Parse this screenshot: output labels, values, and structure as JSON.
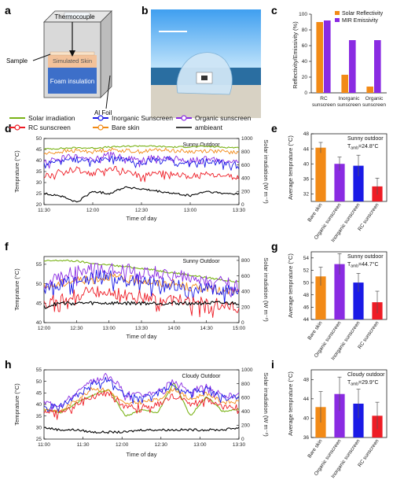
{
  "colors": {
    "solar": "#7ab317",
    "inorganic": "#1a1ae6",
    "organic": "#8a2be2",
    "rc": "#ee1c25",
    "bare": "#f28a16",
    "ambient": "#000000",
    "foam": "#3d6fc9",
    "skin": "#f3c29a",
    "alfoil": "#cfcfcf"
  },
  "panels": {
    "a": "a",
    "b": "b",
    "c": "c",
    "d": "d",
    "e": "e",
    "f": "f",
    "g": "g",
    "h": "h",
    "i": "i"
  },
  "schematic": {
    "thermocouple": "Thermocouple",
    "sample": "Sample",
    "skin": "Simulated Skin",
    "foam": "Foam insulation",
    "foil": "Al Foil"
  },
  "legend": {
    "solar": "Solar irradiation",
    "inorganic": "Inorganic Sunscreen",
    "organic": "Organic sunscreen",
    "rc": "RC sunscreen",
    "bare": "Bare skin",
    "ambient": "ambieant"
  },
  "chart_data": [
    {
      "id": "c",
      "type": "bar",
      "categories": [
        "RC sunscreen",
        "Inorganic sunscreen",
        "Organic sunscreen"
      ],
      "series": [
        {
          "name": "Solar Reflectivity",
          "values": [
            90,
            23,
            8
          ]
        },
        {
          "name": "MIR Emissivity",
          "values": [
            92,
            67,
            67
          ]
        }
      ],
      "ylabel": "Reflectivity/Emissivity (%)",
      "ylim": [
        0,
        100
      ],
      "yticks": [
        0,
        20,
        40,
        60,
        80,
        100
      ],
      "legend": "top-right"
    },
    {
      "id": "d",
      "type": "line",
      "annotation": "Sunny Outdoor",
      "xlabel": "Time of day",
      "ylabel": "Temprature (°C)",
      "y2label": "Solar irradiation (W m⁻²)",
      "xticks": [
        "11:30",
        "12:00",
        "12:30",
        "13:00",
        "13:30"
      ],
      "ylim": [
        20,
        50
      ],
      "yticks": [
        20,
        25,
        30,
        35,
        40,
        45,
        50
      ],
      "y2lim": [
        0,
        1000
      ],
      "y2ticks": [
        0,
        200,
        400,
        600,
        800,
        1000
      ],
      "series": [
        {
          "name": "Solar irradiation",
          "axis": "right",
          "values": [
            840,
            850,
            860,
            855,
            870,
            880,
            890,
            880,
            870,
            875,
            880,
            870,
            860
          ]
        },
        {
          "name": "Bare skin",
          "values": [
            43,
            44,
            44.5,
            44,
            45,
            44.5,
            44,
            45,
            44.5,
            44,
            44.5,
            44,
            43.5
          ]
        },
        {
          "name": "Organic sunscreen",
          "values": [
            39,
            41,
            42,
            40,
            43,
            41,
            40,
            42,
            41,
            40,
            41,
            40,
            39
          ]
        },
        {
          "name": "Inorganic Sunscreen",
          "values": [
            38,
            40,
            41,
            39,
            42,
            40,
            39,
            41,
            40,
            39,
            40,
            39,
            38
          ]
        },
        {
          "name": "RC sunscreen",
          "values": [
            33,
            35,
            36,
            34,
            37,
            35,
            33,
            35,
            34,
            33,
            34,
            33,
            32
          ]
        },
        {
          "name": "ambieant",
          "values": [
            25,
            24,
            21,
            26,
            25,
            28,
            27,
            26,
            25,
            24,
            26,
            25,
            25
          ]
        }
      ]
    },
    {
      "id": "e",
      "type": "bar",
      "annotation": "Sunny outdoor",
      "amb_main": "T",
      "amb_sub": "amb",
      "amb_val": "=24.8°C",
      "categories": [
        "Bare skin",
        "Organic sunscreen",
        "Inorganic sunscreen",
        "RC sunscreen"
      ],
      "values": [
        44.3,
        40.0,
        39.5,
        34.0
      ],
      "errors": [
        1.4,
        1.8,
        2.8,
        2.2
      ],
      "ylabel": "Average temprature (°C)",
      "ylim": [
        30,
        48
      ],
      "yticks": [
        32,
        36,
        40,
        44,
        48
      ]
    },
    {
      "id": "f",
      "type": "line",
      "annotation": "Sunny Outdoor",
      "xlabel": "Time of day",
      "ylabel": "Temprature (°C)",
      "y2label": "Solar irradiation (W m⁻²)",
      "xticks": [
        "12:00",
        "12:30",
        "13:00",
        "13:30",
        "14:00",
        "14:30",
        "15:00"
      ],
      "ylim": [
        40,
        57
      ],
      "yticks": [
        40,
        45,
        50,
        55
      ],
      "y2lim": [
        0,
        850
      ],
      "y2ticks": [
        0,
        200,
        400,
        600,
        800
      ],
      "series": [
        {
          "name": "Solar irradiation",
          "axis": "right",
          "values": [
            790,
            800,
            790,
            760,
            740,
            720,
            700,
            670,
            640,
            610,
            580,
            550,
            520
          ]
        },
        {
          "name": "Bare skin",
          "values": [
            49,
            50,
            51,
            51,
            52,
            51,
            51,
            50,
            50,
            49,
            49,
            48,
            48
          ]
        },
        {
          "name": "Organic sunscreen",
          "values": [
            50,
            52,
            53,
            54,
            54,
            54,
            53,
            53,
            52,
            52,
            51,
            51,
            50
          ]
        },
        {
          "name": "Inorganic Sunscreen",
          "values": [
            49,
            50,
            51,
            52,
            52,
            51,
            51,
            50,
            50,
            49,
            49,
            48,
            48
          ]
        },
        {
          "name": "RC sunscreen",
          "values": [
            45,
            46,
            47,
            48,
            48,
            47,
            47,
            46,
            46,
            45,
            45,
            45,
            44
          ]
        },
        {
          "name": "ambieant",
          "values": [
            44,
            45,
            45,
            45,
            45,
            45,
            45,
            45,
            45,
            45,
            45,
            45,
            45
          ]
        }
      ]
    },
    {
      "id": "g",
      "type": "bar",
      "annotation": "Sunny outdoor",
      "amb_main": "T",
      "amb_sub": "amb",
      "amb_val": "=44.7°C",
      "categories": [
        "Bare skin",
        "Organic sunscreen",
        "Inorganic sunscreen",
        "RC sunscreen"
      ],
      "values": [
        51.0,
        53.0,
        50.0,
        46.8
      ],
      "errors": [
        1.5,
        1.7,
        1.5,
        1.8
      ],
      "ylabel": "Average temprature (°C)",
      "ylim": [
        44,
        55
      ],
      "yticks": [
        44,
        46,
        48,
        50,
        52,
        54
      ]
    },
    {
      "id": "h",
      "type": "line",
      "annotation": "Cloudy Outdoor",
      "xlabel": "Time of day",
      "ylabel": "Temprature (°C)",
      "y2label": "Solar irradiation (W m⁻²)",
      "xticks": [
        "11:00",
        "11:30",
        "12:00",
        "12:30",
        "13:00",
        "13:30"
      ],
      "ylim": [
        25,
        55
      ],
      "yticks": [
        25,
        30,
        35,
        40,
        45,
        50,
        55
      ],
      "y2lim": [
        0,
        1000
      ],
      "y2ticks": [
        0,
        200,
        400,
        600,
        800,
        1000
      ],
      "series": [
        {
          "name": "Solar irradiation",
          "axis": "right",
          "values": [
            430,
            380,
            520,
            640,
            720,
            330,
            420,
            380,
            820,
            330,
            620,
            400,
            430
          ]
        },
        {
          "name": "Bare skin",
          "values": [
            38,
            37,
            42,
            47,
            46,
            40,
            41,
            42,
            47,
            42,
            45,
            41,
            41
          ]
        },
        {
          "name": "Organic sunscreen",
          "values": [
            41,
            40,
            45,
            50,
            53,
            45,
            44,
            46,
            50,
            46,
            48,
            44,
            44
          ]
        },
        {
          "name": "Inorganic Sunscreen",
          "values": [
            40,
            39,
            44,
            49,
            51,
            44,
            43,
            45,
            49,
            45,
            47,
            43,
            43
          ]
        },
        {
          "name": "RC sunscreen",
          "values": [
            37,
            36,
            40,
            44,
            45,
            39,
            39,
            40,
            44,
            40,
            42,
            39,
            39
          ]
        },
        {
          "name": "ambieant",
          "values": [
            30,
            29,
            29,
            28,
            28,
            28,
            29,
            29,
            29,
            29,
            29,
            29,
            30
          ]
        }
      ]
    },
    {
      "id": "i",
      "type": "bar",
      "annotation": "Cloudy outdoor",
      "amb_main": "T",
      "amb_sub": "amb",
      "amb_val": "=29.9°C",
      "categories": [
        "Bare skin",
        "Organic sunscreen",
        "Inorganic sunscreen",
        "RC sunscreen"
      ],
      "values": [
        42.3,
        45.0,
        43.0,
        40.5
      ],
      "errors": [
        3.2,
        3.5,
        3.0,
        2.8
      ],
      "ylabel": "Average temprature (°C)",
      "ylim": [
        36,
        50
      ],
      "yticks": [
        36,
        40,
        44,
        48
      ]
    }
  ]
}
